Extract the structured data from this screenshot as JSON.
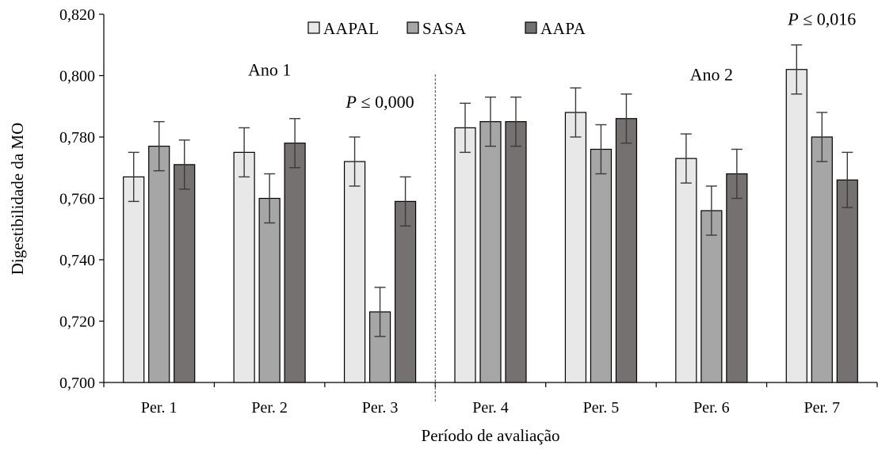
{
  "chart_data": {
    "type": "bar",
    "xlabel": "Período de avaliação",
    "ylabel": "Digestibilidade da MO",
    "ylim": [
      0.7,
      0.82
    ],
    "y_ticks": [
      "0,700",
      "0,720",
      "0,740",
      "0,760",
      "0,780",
      "0,800",
      "0,820"
    ],
    "y_tick_values": [
      0.7,
      0.72,
      0.74,
      0.76,
      0.78,
      0.8,
      0.82
    ],
    "categories": [
      "Per. 1",
      "Per. 2",
      "Per. 3",
      "Per. 4",
      "Per. 5",
      "Per. 6",
      "Per. 7"
    ],
    "series": [
      {
        "name": "AAPAL",
        "color": "#e8e8e8",
        "values": [
          0.767,
          0.775,
          0.772,
          0.783,
          0.788,
          0.773,
          0.802
        ],
        "errors": [
          0.008,
          0.008,
          0.008,
          0.008,
          0.008,
          0.008,
          0.008
        ]
      },
      {
        "name": "SASA",
        "color": "#a6a6a6",
        "values": [
          0.777,
          0.76,
          0.723,
          0.785,
          0.776,
          0.756,
          0.78
        ],
        "errors": [
          0.008,
          0.008,
          0.008,
          0.008,
          0.008,
          0.008,
          0.008
        ]
      },
      {
        "name": "AAPA",
        "color": "#767171",
        "values": [
          0.771,
          0.778,
          0.759,
          0.785,
          0.786,
          0.768,
          0.766
        ],
        "errors": [
          0.008,
          0.008,
          0.008,
          0.008,
          0.008,
          0.008,
          0.009
        ]
      }
    ],
    "legend": {
      "placement": "top-center",
      "entries": [
        "AAPAL",
        "SASA",
        "AAPA"
      ]
    },
    "annotations": [
      {
        "text": "Ano 1",
        "category": "Per. 2",
        "y": 0.8
      },
      {
        "text_italic": "P",
        "text_rest": " ≤ 0,000",
        "category": "Per. 3",
        "y": 0.7895
      },
      {
        "text": "Ano 2",
        "category": "Per. 6",
        "y": 0.7985
      },
      {
        "text_italic": "P",
        "text_rest": " ≤ 0,016",
        "category": "Per. 7",
        "y": 0.8165
      }
    ],
    "divider": {
      "between": [
        "Per. 3",
        "Per. 4"
      ],
      "style": "dashed"
    },
    "grid": false
  }
}
